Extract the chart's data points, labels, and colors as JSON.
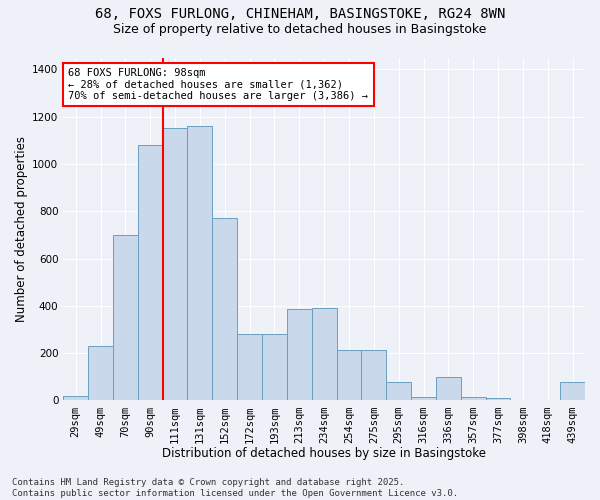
{
  "title_line1": "68, FOXS FURLONG, CHINEHAM, BASINGSTOKE, RG24 8WN",
  "title_line2": "Size of property relative to detached houses in Basingstoke",
  "xlabel": "Distribution of detached houses by size in Basingstoke",
  "ylabel": "Number of detached properties",
  "categories": [
    "29sqm",
    "49sqm",
    "70sqm",
    "90sqm",
    "111sqm",
    "131sqm",
    "152sqm",
    "172sqm",
    "193sqm",
    "213sqm",
    "234sqm",
    "254sqm",
    "275sqm",
    "295sqm",
    "316sqm",
    "336sqm",
    "357sqm",
    "377sqm",
    "398sqm",
    "418sqm",
    "439sqm"
  ],
  "values": [
    20,
    230,
    700,
    1080,
    1150,
    1160,
    770,
    280,
    280,
    385,
    390,
    215,
    215,
    80,
    15,
    100,
    15,
    10,
    0,
    0,
    80
  ],
  "bar_color": "#c9d9eb",
  "bar_edge_color": "#6a9fc0",
  "vline_color": "red",
  "vline_position": 3.5,
  "annotation_text": "68 FOXS FURLONG: 98sqm\n← 28% of detached houses are smaller (1,362)\n70% of semi-detached houses are larger (3,386) →",
  "annotation_box_color": "white",
  "annotation_box_edge_color": "red",
  "ylim": [
    0,
    1450
  ],
  "yticks": [
    0,
    200,
    400,
    600,
    800,
    1000,
    1200,
    1400
  ],
  "footer_text": "Contains HM Land Registry data © Crown copyright and database right 2025.\nContains public sector information licensed under the Open Government Licence v3.0.",
  "background_color": "#eef2f8",
  "grid_color": "white",
  "title_fontsize": 10,
  "subtitle_fontsize": 9,
  "axis_label_fontsize": 8.5,
  "tick_fontsize": 7.5,
  "footer_fontsize": 6.5
}
